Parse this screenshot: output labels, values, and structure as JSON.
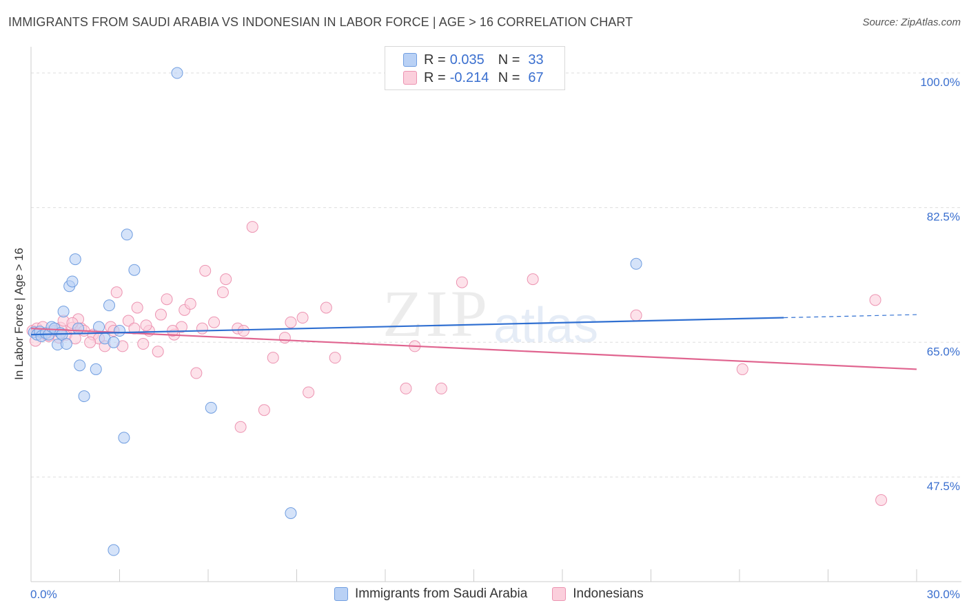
{
  "header": {
    "title": "IMMIGRANTS FROM SAUDI ARABIA VS INDONESIAN IN LABOR FORCE | AGE > 16 CORRELATION CHART",
    "source": "Source: ZipAtlas.com"
  },
  "watermark": {
    "zip": "ZIP",
    "atlas": "atlas"
  },
  "legend": {
    "r_label": "R =",
    "n_label": "N =",
    "rows": [
      {
        "r": "0.035",
        "n": "33"
      },
      {
        "r": "-0.214",
        "n": "67"
      }
    ]
  },
  "chart_data": {
    "type": "scatter",
    "title": "IMMIGRANTS FROM SAUDI ARABIA VS INDONESIAN IN LABOR FORCE | AGE > 16 CORRELATION CHART",
    "xlabel": "",
    "ylabel": "In Labor Force | Age > 16",
    "xlim": [
      0,
      30
    ],
    "ylim": [
      33.9,
      103.4
    ],
    "x_tick_labels": [
      "0.0%",
      "30.0%"
    ],
    "y_ticks": [
      100.0,
      82.5,
      65.0,
      47.5
    ],
    "y_tick_labels": [
      "100.0%",
      "82.5%",
      "65.0%",
      "47.5%"
    ],
    "grid": true,
    "colors": {
      "saudi_fill": "#b9d1f5",
      "saudi_stroke": "#6f9de0",
      "saudi_line": "#2f6fd1",
      "indo_fill": "#fbcfdc",
      "indo_stroke": "#ec93b1",
      "indo_line": "#e0648f"
    },
    "series": [
      {
        "name": "Immigrants from Saudi Arabia",
        "R": 0.035,
        "N": 33,
        "trend": {
          "x0": 0,
          "y0": 66.0,
          "x1": 25.5,
          "y1": 68.2,
          "x_dashed_end": 30.0,
          "y_dashed_end": 68.6
        },
        "points": [
          [
            0.1,
            66.3
          ],
          [
            0.2,
            66.0
          ],
          [
            0.3,
            66.4
          ],
          [
            0.35,
            65.8
          ],
          [
            0.5,
            66.2
          ],
          [
            0.6,
            66.0
          ],
          [
            0.7,
            67.0
          ],
          [
            0.8,
            66.8
          ],
          [
            0.9,
            64.7
          ],
          [
            1.0,
            66.2
          ],
          [
            1.05,
            66.0
          ],
          [
            1.2,
            64.8
          ],
          [
            1.1,
            69.0
          ],
          [
            1.3,
            72.3
          ],
          [
            1.4,
            72.9
          ],
          [
            1.5,
            75.8
          ],
          [
            1.6,
            66.8
          ],
          [
            1.65,
            62.0
          ],
          [
            1.8,
            58.0
          ],
          [
            2.2,
            61.5
          ],
          [
            2.3,
            67.0
          ],
          [
            2.5,
            65.5
          ],
          [
            2.65,
            69.8
          ],
          [
            2.8,
            65.0
          ],
          [
            3.0,
            66.5
          ],
          [
            3.15,
            52.6
          ],
          [
            3.25,
            79.0
          ],
          [
            3.5,
            74.4
          ],
          [
            4.95,
            100.0
          ],
          [
            6.1,
            56.5
          ],
          [
            8.8,
            42.8
          ],
          [
            2.8,
            38.0
          ],
          [
            20.5,
            75.2
          ]
        ]
      },
      {
        "name": "Indonesians",
        "R": -0.214,
        "N": 67,
        "trend": {
          "x0": 0,
          "y0": 66.8,
          "x1": 30.0,
          "y1": 61.5
        },
        "points": [
          [
            0.05,
            66.5
          ],
          [
            0.2,
            66.8
          ],
          [
            0.3,
            66.2
          ],
          [
            0.4,
            67.0
          ],
          [
            0.5,
            66.0
          ],
          [
            0.6,
            65.8
          ],
          [
            0.8,
            66.5
          ],
          [
            0.95,
            65.6
          ],
          [
            1.0,
            66.9
          ],
          [
            1.1,
            67.8
          ],
          [
            1.2,
            66.0
          ],
          [
            1.4,
            66.9
          ],
          [
            1.5,
            65.5
          ],
          [
            1.6,
            68.0
          ],
          [
            1.7,
            66.8
          ],
          [
            1.8,
            66.5
          ],
          [
            2.1,
            66.0
          ],
          [
            2.3,
            65.5
          ],
          [
            2.5,
            64.5
          ],
          [
            2.7,
            67.0
          ],
          [
            2.8,
            66.5
          ],
          [
            2.9,
            71.5
          ],
          [
            3.1,
            64.5
          ],
          [
            3.3,
            67.8
          ],
          [
            3.5,
            66.8
          ],
          [
            3.6,
            69.5
          ],
          [
            3.8,
            64.8
          ],
          [
            4.0,
            66.5
          ],
          [
            4.3,
            63.8
          ],
          [
            4.4,
            68.6
          ],
          [
            4.6,
            70.6
          ],
          [
            4.85,
            66.0
          ],
          [
            5.1,
            67.0
          ],
          [
            5.2,
            69.2
          ],
          [
            5.4,
            70.0
          ],
          [
            5.6,
            61.0
          ],
          [
            5.8,
            66.8
          ],
          [
            5.9,
            74.3
          ],
          [
            6.2,
            67.6
          ],
          [
            6.5,
            71.5
          ],
          [
            6.6,
            73.2
          ],
          [
            7.0,
            66.8
          ],
          [
            7.1,
            54.0
          ],
          [
            7.2,
            66.5
          ],
          [
            7.5,
            80.0
          ],
          [
            7.9,
            56.2
          ],
          [
            8.2,
            63.0
          ],
          [
            8.6,
            65.6
          ],
          [
            8.8,
            67.6
          ],
          [
            9.2,
            68.2
          ],
          [
            9.4,
            58.5
          ],
          [
            10.0,
            69.5
          ],
          [
            10.3,
            63.0
          ],
          [
            12.7,
            59.0
          ],
          [
            13.0,
            64.5
          ],
          [
            13.9,
            59.0
          ],
          [
            14.6,
            72.8
          ],
          [
            17.0,
            73.2
          ],
          [
            20.5,
            68.5
          ],
          [
            24.1,
            61.5
          ],
          [
            28.6,
            70.5
          ],
          [
            28.8,
            44.5
          ],
          [
            1.4,
            67.5
          ],
          [
            2.0,
            65.0
          ],
          [
            3.9,
            67.2
          ],
          [
            0.15,
            65.2
          ],
          [
            4.8,
            66.5
          ]
        ]
      }
    ]
  }
}
